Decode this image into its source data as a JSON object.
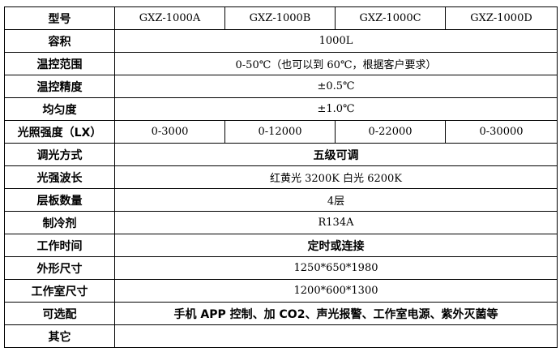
{
  "header": {
    "label": "型号",
    "models": [
      "GXZ-1000A",
      "GXZ-1000B",
      "GXZ-1000C",
      "GXZ-1000D"
    ]
  },
  "rows": [
    {
      "label": "容积",
      "value": "1000L"
    },
    {
      "label": "温控范围",
      "value": "0-50℃（也可以到 60℃，根据客户要求）"
    },
    {
      "label": "温控精度",
      "value": "±0.5℃"
    },
    {
      "label": "均匀度",
      "value": "±1.0℃"
    },
    {
      "label": "光照强度（LX）",
      "values": [
        "0-3000",
        "0-12000",
        "0-22000",
        "0-30000"
      ]
    },
    {
      "label": "调光方式",
      "value": "五级可调"
    },
    {
      "label": "光强波长",
      "value": "红黄光 3200K 白光 6200K"
    },
    {
      "label": "层板数量",
      "value": "4层"
    },
    {
      "label": "制冷剂",
      "value": "R134A"
    },
    {
      "label": "工作时间",
      "value": "定时或连接"
    },
    {
      "label": "外形尺寸",
      "value": "1250*650*1980"
    },
    {
      "label": "工作室尺寸",
      "value": "1200*600*1300"
    },
    {
      "label": "可选配",
      "value": "手机 APP 控制、加 CO2、声光报警、工作室电源、紫外灭菌等"
    },
    {
      "label": "其它",
      "value": ""
    }
  ]
}
